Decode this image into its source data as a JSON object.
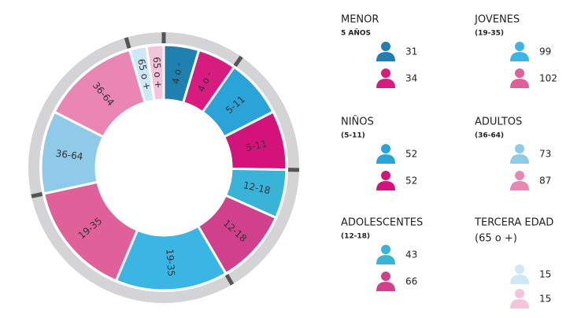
{
  "chart_data": {
    "type": "donut",
    "groups": [
      {
        "label": "4 o -",
        "title": "MENOR",
        "subtitle": "5 AÑOS",
        "values": [
          31,
          34
        ],
        "colors": [
          "#1f7fae",
          "#d81b7f"
        ]
      },
      {
        "label": "5-11",
        "title": "NIÑOS",
        "subtitle": "(5-11)",
        "values": [
          52,
          52
        ],
        "colors": [
          "#2aa4d8",
          "#d4137a"
        ]
      },
      {
        "label": "12-18",
        "title": "ADOLESCENTES",
        "subtitle": "(12-18)",
        "values": [
          43,
          66
        ],
        "colors": [
          "#3ab3d8",
          "#d0408c"
        ]
      },
      {
        "label": "19-35",
        "title": "JOVENES",
        "subtitle": "(19-35)",
        "values": [
          99,
          102
        ],
        "colors": [
          "#3bb5e3",
          "#e0609a"
        ]
      },
      {
        "label": "36-64",
        "title": "ADULTOS",
        "subtitle": "(36-64)",
        "values": [
          73,
          87
        ],
        "colors": [
          "#8fcbe8",
          "#ea86b4"
        ]
      },
      {
        "label": "65 o +",
        "title": "TERCERA EDAD",
        "subtitle": "(65 o +)",
        "values": [
          15,
          15
        ],
        "colors": [
          "#cde8f6",
          "#f5c3dc"
        ]
      }
    ]
  }
}
